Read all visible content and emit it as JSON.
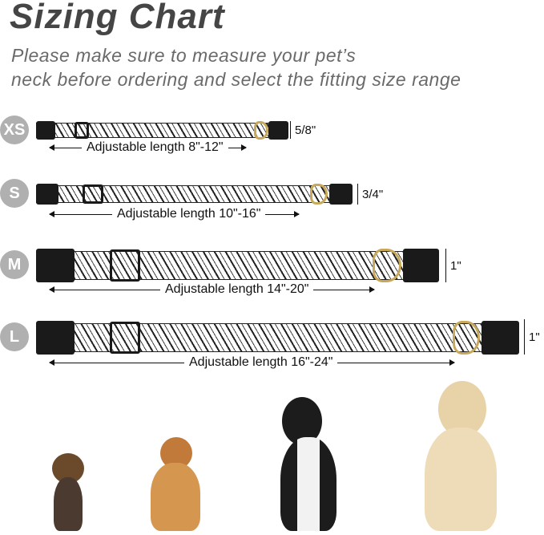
{
  "title": "Sizing Chart",
  "subtitle_lines": [
    "Please make sure to measure your pet’s",
    "neck before ordering and select the fitting size range"
  ],
  "sizes": [
    {
      "label": "XS",
      "width": "5/8\"",
      "length": "Adjustable length 8\"-12\""
    },
    {
      "label": "S",
      "width": "3/4\"",
      "length": "Adjustable length 10\"-16\""
    },
    {
      "label": "M",
      "width": "1\"",
      "length": "Adjustable length 14\"-20\""
    },
    {
      "label": "L",
      "width": "1\"",
      "length": "Adjustable length 16\"-24\""
    }
  ],
  "colors": {
    "badge": "#b0b0b0",
    "title": "#454545",
    "ring": "#c8a85a"
  }
}
